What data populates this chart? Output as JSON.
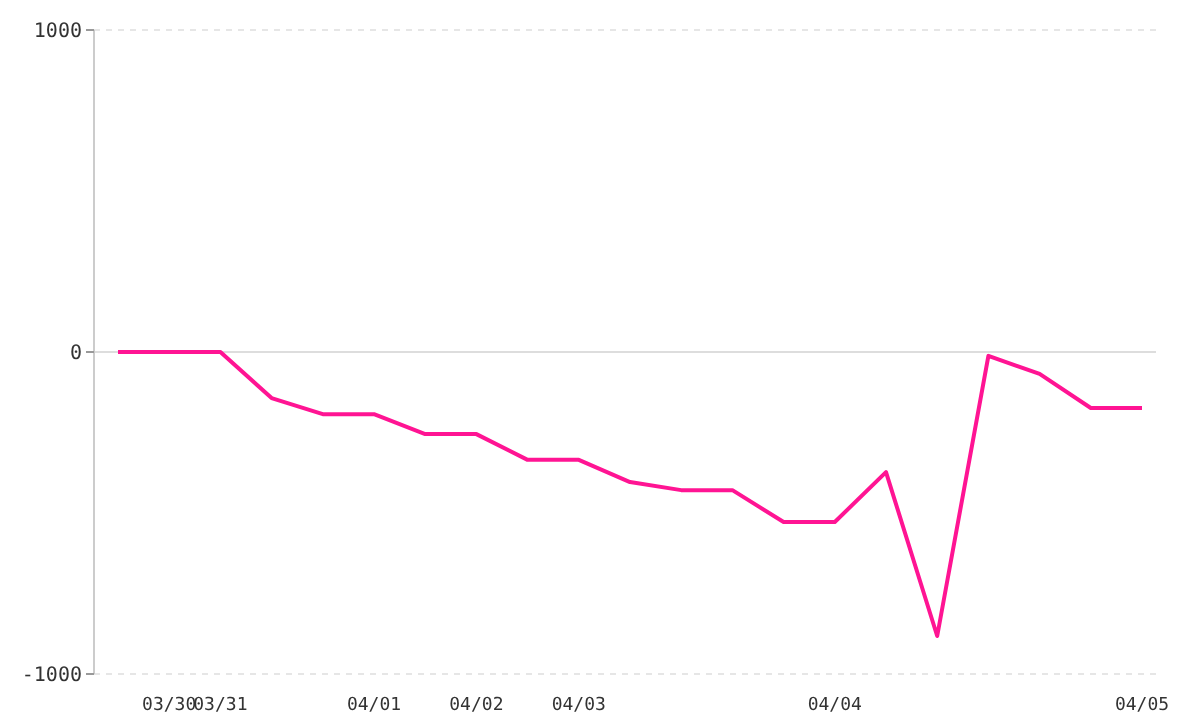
{
  "chart_data": {
    "type": "line",
    "categories": [
      null,
      "03/30",
      "03/31",
      null,
      null,
      "04/01",
      null,
      "04/02",
      null,
      "04/03",
      null,
      null,
      null,
      null,
      "04/04",
      null,
      null,
      null,
      null,
      null,
      "04/05"
    ],
    "series": [
      {
        "color": "#ff1493",
        "values": [
          0,
          0,
          0,
          -143,
          -193,
          -193,
          -255,
          -255,
          -335,
          -335,
          -404,
          -429,
          -429,
          -528,
          -528,
          -373,
          -882,
          -12,
          -68,
          -174,
          -174
        ]
      }
    ],
    "ylim": [
      -1000,
      1000
    ],
    "yticks": [
      -1000,
      0,
      1000
    ],
    "grid": "y",
    "marker": "none",
    "line_style": "solid"
  }
}
